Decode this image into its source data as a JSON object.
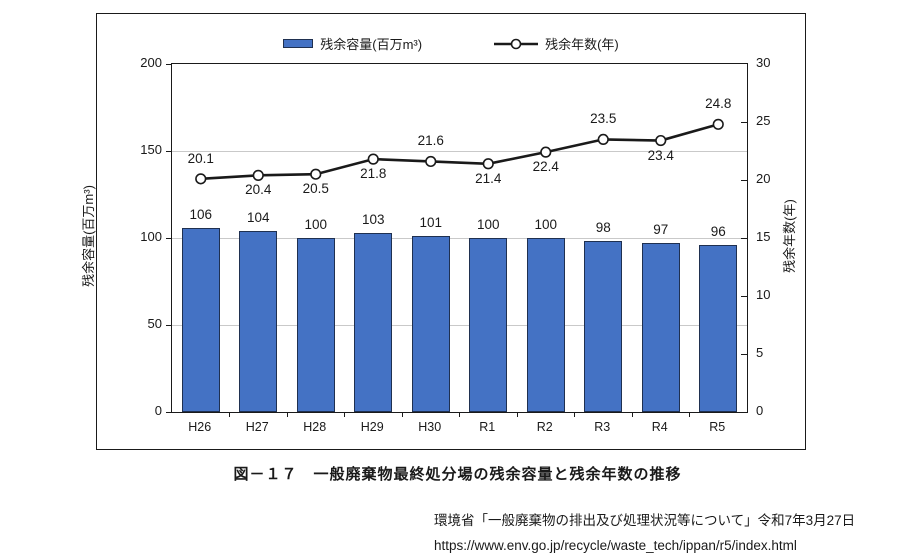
{
  "colors": {
    "bar_fill": "#4472C4",
    "bar_border": "#1F3050",
    "line": "#1a1a1a",
    "marker_fill": "#ffffff",
    "grid": "#c9c9c9",
    "frame_border": "#1a1a1a",
    "text": "#1a1a1a"
  },
  "legend": {
    "items": [
      {
        "label": "残余容量(百万m³)",
        "swatch": "bar"
      },
      {
        "label": "残余年数(年)",
        "swatch": "line-marker"
      }
    ]
  },
  "chart_data": {
    "type": "combo",
    "categories": [
      "H26",
      "H27",
      "H28",
      "H29",
      "H30",
      "R1",
      "R2",
      "R3",
      "R4",
      "R5"
    ],
    "series": [
      {
        "name": "残余容量(百万m³)",
        "type": "bar",
        "axis": "left",
        "values": [
          106,
          104,
          100,
          103,
          101,
          100,
          100,
          98,
          97,
          96
        ]
      },
      {
        "name": "残余年数(年)",
        "type": "line",
        "axis": "right",
        "values": [
          20.1,
          20.4,
          20.5,
          21.8,
          21.6,
          21.4,
          22.4,
          23.5,
          23.4,
          24.8
        ],
        "label_positions": [
          "above",
          "below",
          "below",
          "below",
          "above",
          "below",
          "below",
          "above",
          "below",
          "above"
        ]
      }
    ],
    "left_axis": {
      "title": "残余容量(百万m³)",
      "range": [
        0,
        200
      ],
      "ticks": [
        0,
        50,
        100,
        150,
        200
      ]
    },
    "right_axis": {
      "title": "残余年数(年)",
      "range": [
        0,
        30
      ],
      "ticks": [
        0,
        5,
        10,
        15,
        20,
        25,
        30
      ]
    },
    "gridlines_left_values": [
      50,
      100,
      150
    ],
    "grid": true,
    "legend_position": "top"
  },
  "caption": "図－１７　一般廃棄物最終処分場の残余容量と残余年数の推移",
  "source": {
    "line1": "環境省「一般廃棄物の排出及び処理状況等について」令和7年3月27日",
    "line2": "https://www.env.go.jp/recycle/waste_tech/ippan/r5/index.html"
  }
}
